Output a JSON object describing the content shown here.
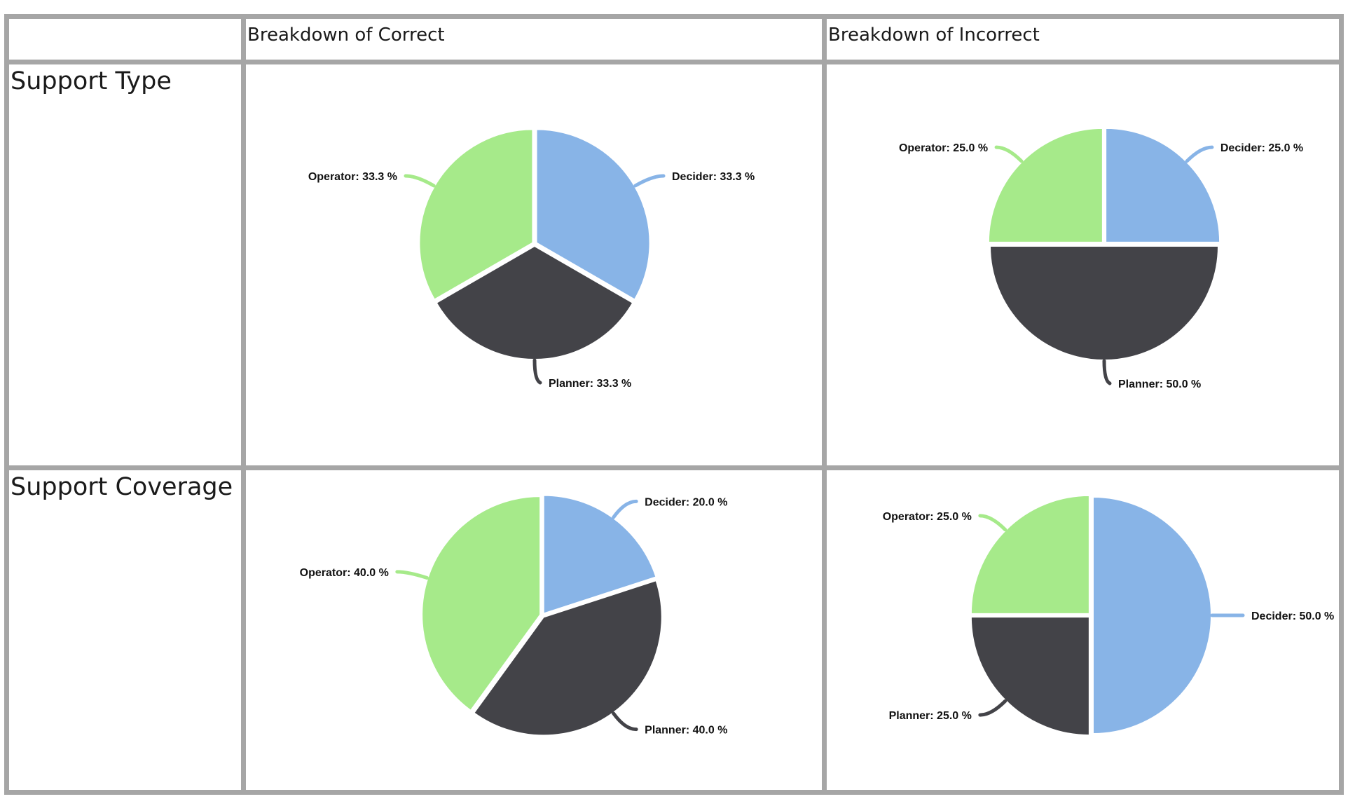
{
  "table": {
    "corner": "",
    "col_headers": [
      "Breakdown of Correct",
      "Breakdown of Incorrect"
    ],
    "row_headers": [
      "Support Type",
      "Support Coverage"
    ]
  },
  "colors": {
    "Decider": "#88b4e7",
    "Planner": "#434348",
    "Operator": "#a6ea8a",
    "grid": "#a6a6a6"
  },
  "chart_data": [
    {
      "type": "pie",
      "row": "Support Type",
      "column": "Breakdown of Correct",
      "categories": [
        "Decider",
        "Planner",
        "Operator"
      ],
      "values": [
        33.3,
        33.3,
        33.3
      ],
      "labels": [
        "Decider: 33.3 %",
        "Planner: 33.3 %",
        "Operator: 33.3 %"
      ]
    },
    {
      "type": "pie",
      "row": "Support Type",
      "column": "Breakdown of Incorrect",
      "categories": [
        "Decider",
        "Planner",
        "Operator"
      ],
      "values": [
        25.0,
        50.0,
        25.0
      ],
      "labels": [
        "Decider: 25.0 %",
        "Planner: 50.0 %",
        "Operator: 25.0 %"
      ]
    },
    {
      "type": "pie",
      "row": "Support Coverage",
      "column": "Breakdown of Correct",
      "categories": [
        "Decider",
        "Planner",
        "Operator"
      ],
      "values": [
        20.0,
        40.0,
        40.0
      ],
      "labels": [
        "Decider: 20.0 %",
        "Planner: 40.0 %",
        "Operator: 40.0 %"
      ]
    },
    {
      "type": "pie",
      "row": "Support Coverage",
      "column": "Breakdown of Incorrect",
      "categories": [
        "Decider",
        "Planner",
        "Operator"
      ],
      "values": [
        50.0,
        25.0,
        25.0
      ],
      "labels": [
        "Decider: 50.0 %",
        "Planner: 25.0 %",
        "Operator: 25.0 %"
      ]
    }
  ]
}
